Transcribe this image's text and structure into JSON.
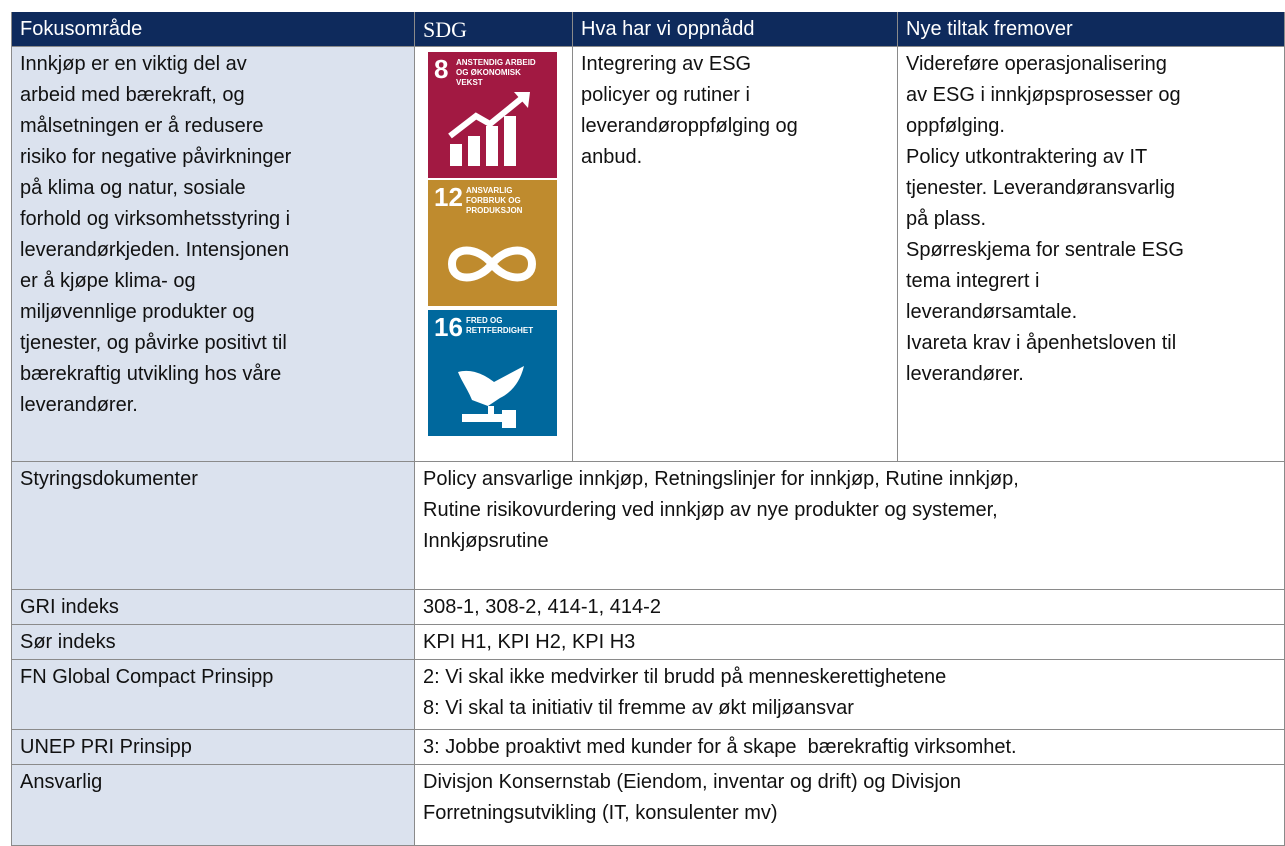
{
  "header": [
    "Fokusområde",
    "SDG",
    "Hva har vi oppnådd",
    "Nye tiltak fremover"
  ],
  "focus": {
    "description": [
      "Innkjøp er en viktig del av",
      "arbeid med bærekraft, og",
      "målsetningen er å redusere",
      "risiko for negative påvirkninger",
      "på klima og natur, sosiale",
      "forhold og virksomhetsstyring i",
      "leverandørkjeden. Intensjonen",
      "er å kjøpe klima- og",
      "miljøvennlige produkter og",
      "tjenester, og påvirke positivt til",
      "bærekraftig utvikling hos våre",
      "leverandører."
    ],
    "sdgs": [
      {
        "number": "8",
        "label": [
          "ANSTENDIG ARBEID",
          "OG ØKONOMISK",
          "VEKST"
        ]
      },
      {
        "number": "12",
        "label": [
          "ANSVARLIG",
          "FORBRUK OG",
          "PRODUKSJON"
        ]
      },
      {
        "number": "16",
        "label": [
          "FRED OG",
          "RETTFERDIGHET"
        ]
      }
    ],
    "achieved": [
      "Integrering av ESG",
      "policyer og rutiner i",
      "leverandøroppfølging og",
      "anbud."
    ],
    "next": [
      "Videreføre operasjonalisering",
      "av ESG i innkjøpsprosesser og",
      "oppfølging.",
      "Policy utkontraktering av IT",
      "tjenester. Leverandøransvarlig",
      "på plass.",
      "Spørreskjema for sentrale ESG",
      "tema integrert i",
      "leverandørsamtale.",
      "Ivareta krav i åpenhetsloven til",
      "leverandører."
    ]
  },
  "rows": [
    {
      "label": "Styringsdokumenter",
      "lines": [
        "Policy ansvarlige innkjøp, Retningslinjer for innkjøp, Rutine innkjøp,",
        "Rutine risikovurdering ved innkjøp av nye produkter og systemer,",
        "Innkjøpsrutine"
      ]
    },
    {
      "label": "GRI indeks",
      "lines": [
        "308-1, 308-2, 414-1, 414-2"
      ]
    },
    {
      "label": "Sør indeks",
      "lines": [
        "KPI H1, KPI H2, KPI H3"
      ]
    },
    {
      "label": "FN Global Compact Prinsipp",
      "lines": [
        "2: Vi skal ikke medvirker til brudd på menneskerettighetene",
        "8: Vi skal ta initiativ til fremme av økt miljøansvar"
      ]
    },
    {
      "label": "UNEP PRI Prinsipp",
      "lines": [
        "3: Jobbe proaktivt med kunder for å skape  bærekraftig virksomhet."
      ]
    },
    {
      "label": "Ansvarlig",
      "lines": [
        "Divisjon Konsernstab (Eiendom, inventar og drift) og Divisjon",
        "Forretningsutvikling (IT, konsulenter mv)"
      ]
    }
  ]
}
